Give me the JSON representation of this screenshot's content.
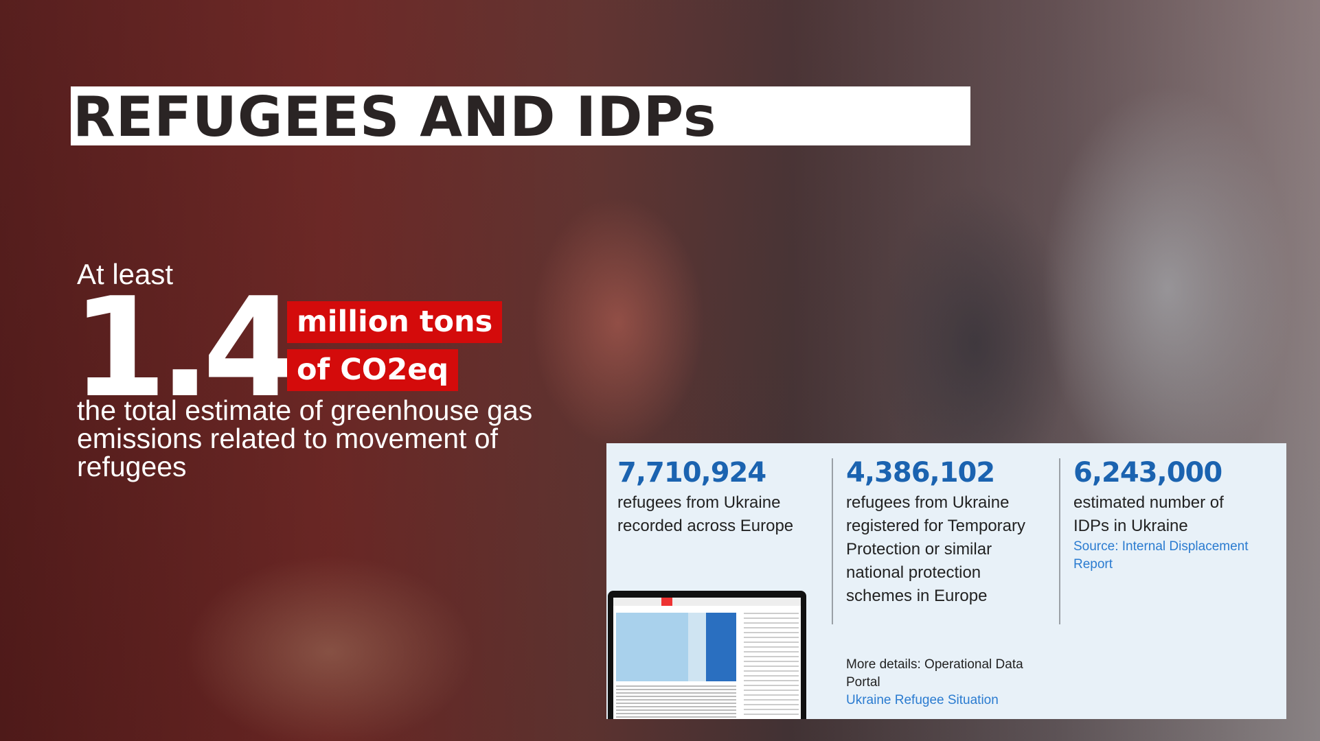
{
  "title": "REFUGEES AND IDPs",
  "emissions": {
    "prefix": "At least",
    "value": "1.4",
    "unit_line1": "million tons",
    "unit_line2": "of CO2eq",
    "description": "the total estimate of greenhouse gas emissions related to movement of refugees",
    "highlight_color": "#d40b0b"
  },
  "stats": [
    {
      "value": "7,710,924",
      "label": "refugees from Ukraine recorded across Europe"
    },
    {
      "value": "4,386,102",
      "label": "refugees from Ukraine registered for Temporary Protection or similar national protection schemes in Europe"
    },
    {
      "value": "6,243,000",
      "label": "estimated number of IDPs in Ukraine",
      "source": "Source: Internal Displacement Report"
    }
  ],
  "more_details": {
    "text": "More details: Operational Data Portal",
    "link": "Ukraine Refugee Situation"
  },
  "accent_color": "#1b63b0"
}
